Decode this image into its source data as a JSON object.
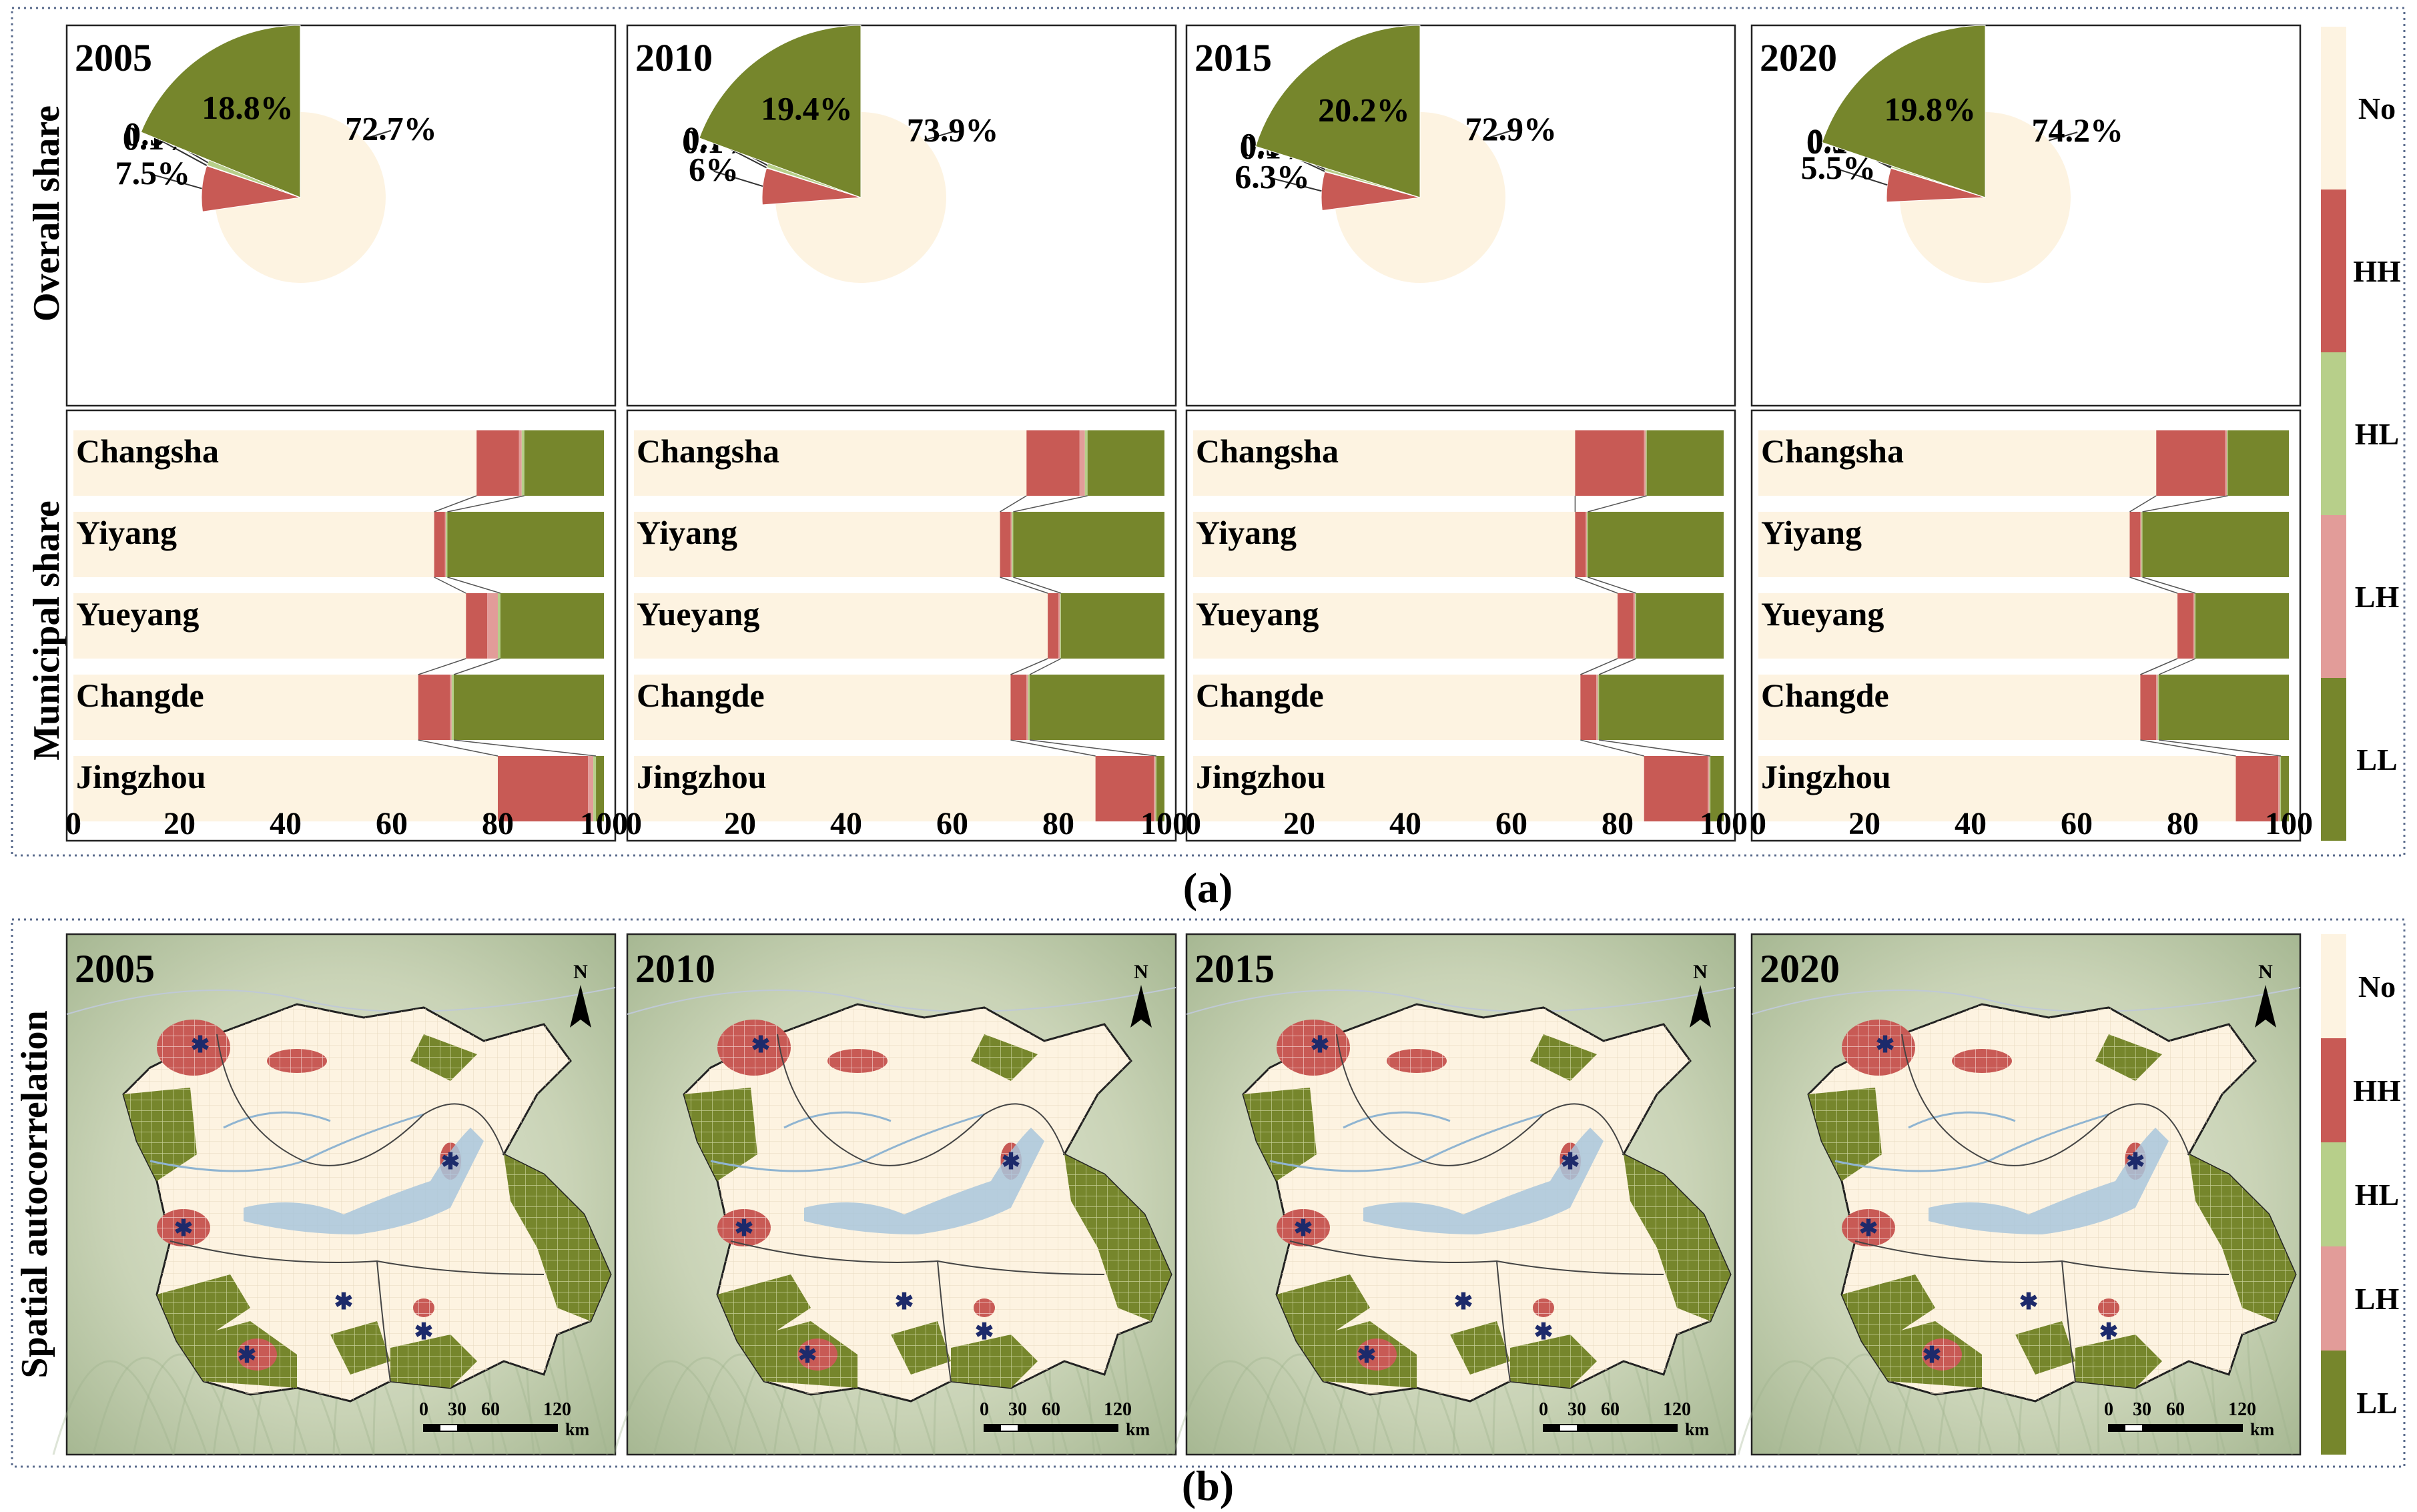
{
  "colors": {
    "No": "#FDF3E1",
    "HH": "#C85A55",
    "HL": "#B7CF8A",
    "LH": "#E29C99",
    "LL": "#76862C",
    "frame": "#5a6b8c",
    "map_terrain": "#b9c7a8",
    "water": "#a9c6dc"
  },
  "legend": [
    "No",
    "HH",
    "HL",
    "LH",
    "LL"
  ],
  "row_labels": {
    "overall": "Overall share",
    "municipal": "Municipal share",
    "spatial": "Spatial autocorrelation"
  },
  "captions": {
    "a": "(a)",
    "b": "(b)"
  },
  "chart_data": [
    {
      "type": "pie",
      "title": "2005",
      "slices": [
        {
          "category": "No",
          "value": 72.7,
          "label": "72.7%"
        },
        {
          "category": "HH",
          "value": 7.5,
          "label": "7.5%"
        },
        {
          "category": "LH",
          "value": 0.1,
          "label": "0.1%"
        },
        {
          "category": "HL",
          "value": 0.9,
          "label": "0.9%"
        },
        {
          "category": "LL",
          "value": 18.8,
          "label": "18.8%"
        }
      ]
    },
    {
      "type": "pie",
      "title": "2010",
      "slices": [
        {
          "category": "No",
          "value": 73.9,
          "label": "73.9%"
        },
        {
          "category": "HH",
          "value": 6,
          "label": "6%"
        },
        {
          "category": "LH",
          "value": 0.1,
          "label": "0.1%"
        },
        {
          "category": "HL",
          "value": 0.7,
          "label": "0.7%"
        },
        {
          "category": "LL",
          "value": 19.4,
          "label": "19.4%"
        }
      ]
    },
    {
      "type": "pie",
      "title": "2015",
      "slices": [
        {
          "category": "No",
          "value": 72.9,
          "label": "72.9%"
        },
        {
          "category": "HH",
          "value": 6.3,
          "label": "6.3%"
        },
        {
          "category": "LH",
          "value": 0.1,
          "label": "0.1%"
        },
        {
          "category": "HL",
          "value": 0.5,
          "label": "0.5%"
        },
        {
          "category": "LL",
          "value": 20.2,
          "label": "20.2%"
        }
      ]
    },
    {
      "type": "pie",
      "title": "2020",
      "slices": [
        {
          "category": "No",
          "value": 74.2,
          "label": "74.2%"
        },
        {
          "category": "HH",
          "value": 5.5,
          "label": "5.5%"
        },
        {
          "category": "LH",
          "value": 0.1,
          "label": "0.1%"
        },
        {
          "category": "HL",
          "value": 0.3,
          "label": "0.3%"
        },
        {
          "category": "LL",
          "value": 19.8,
          "label": "19.8%"
        }
      ]
    },
    {
      "type": "bar",
      "orientation": "horizontal",
      "stacked": true,
      "title": "2005",
      "categories": [
        "Changsha",
        "Yiyang",
        "Yueyang",
        "Changde",
        "Jingzhou"
      ],
      "xlim": [
        0,
        100
      ],
      "xticks": [
        0,
        20,
        40,
        60,
        80,
        100
      ],
      "series": [
        {
          "name": "No",
          "values": [
            76,
            68,
            74,
            65,
            80
          ]
        },
        {
          "name": "HH",
          "values": [
            8,
            2,
            4,
            6,
            17
          ]
        },
        {
          "name": "LH",
          "values": [
            0.5,
            0.2,
            2,
            0.3,
            1
          ]
        },
        {
          "name": "HL",
          "values": [
            0.5,
            0.3,
            0.5,
            0.4,
            0.5
          ]
        },
        {
          "name": "LL",
          "values": [
            15,
            29.5,
            19.5,
            28.3,
            1.5
          ]
        }
      ]
    },
    {
      "type": "bar",
      "orientation": "horizontal",
      "stacked": true,
      "title": "2010",
      "categories": [
        "Changsha",
        "Yiyang",
        "Yueyang",
        "Changde",
        "Jingzhou"
      ],
      "xlim": [
        0,
        100
      ],
      "xticks": [
        0,
        20,
        40,
        60,
        80,
        100
      ],
      "series": [
        {
          "name": "No",
          "values": [
            74,
            69,
            78,
            71,
            87
          ]
        },
        {
          "name": "HH",
          "values": [
            10,
            2,
            2,
            3,
            11
          ]
        },
        {
          "name": "LH",
          "values": [
            1,
            0.2,
            0.3,
            0.3,
            0.3
          ]
        },
        {
          "name": "HL",
          "values": [
            0.5,
            0.3,
            0.2,
            0.3,
            0.2
          ]
        },
        {
          "name": "LL",
          "values": [
            14.5,
            28.5,
            19.5,
            25.4,
            1.5
          ]
        }
      ]
    },
    {
      "type": "bar",
      "orientation": "horizontal",
      "stacked": true,
      "title": "2015",
      "categories": [
        "Changsha",
        "Yiyang",
        "Yueyang",
        "Changde",
        "Jingzhou"
      ],
      "xlim": [
        0,
        100
      ],
      "xticks": [
        0,
        20,
        40,
        60,
        80,
        100
      ],
      "series": [
        {
          "name": "No",
          "values": [
            72,
            72,
            80,
            73,
            85
          ]
        },
        {
          "name": "HH",
          "values": [
            13,
            2,
            3,
            3,
            12
          ]
        },
        {
          "name": "LH",
          "values": [
            0.3,
            0.2,
            0.3,
            0.3,
            0.3
          ]
        },
        {
          "name": "HL",
          "values": [
            0.2,
            0.2,
            0.2,
            0.2,
            0.2
          ]
        },
        {
          "name": "LL",
          "values": [
            14.5,
            25.6,
            16.5,
            23.5,
            2.5
          ]
        }
      ]
    },
    {
      "type": "bar",
      "orientation": "horizontal",
      "stacked": true,
      "title": "2020",
      "categories": [
        "Changsha",
        "Yiyang",
        "Yueyang",
        "Changde",
        "Jingzhou"
      ],
      "xlim": [
        0,
        100
      ],
      "xticks": [
        0,
        20,
        40,
        60,
        80,
        100
      ],
      "series": [
        {
          "name": "No",
          "values": [
            75,
            70,
            79,
            72,
            90
          ]
        },
        {
          "name": "HH",
          "values": [
            13,
            2,
            3,
            3,
            8
          ]
        },
        {
          "name": "LH",
          "values": [
            0.3,
            0.2,
            0.2,
            0.3,
            0.3
          ]
        },
        {
          "name": "HL",
          "values": [
            0.2,
            0.2,
            0.2,
            0.2,
            0.2
          ]
        },
        {
          "name": "LL",
          "values": [
            11.5,
            27.6,
            17.6,
            24.5,
            1.5
          ]
        }
      ]
    }
  ],
  "maps": [
    {
      "year": "2005"
    },
    {
      "year": "2010"
    },
    {
      "year": "2015"
    },
    {
      "year": "2020"
    }
  ],
  "map_north": "N",
  "map_scale": {
    "ticks": [
      "0",
      "30",
      "60",
      "120"
    ],
    "unit": "km"
  }
}
